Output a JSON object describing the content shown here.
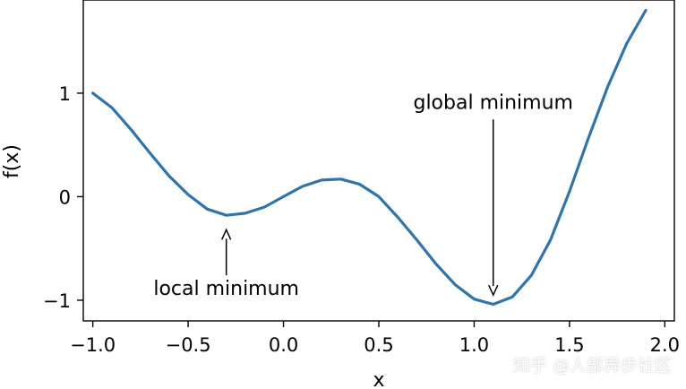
{
  "chart_data": {
    "type": "line",
    "xlabel": "x",
    "ylabel": "f(x)",
    "xlim": [
      -1.05,
      2.05
    ],
    "ylim": [
      -1.2,
      1.9
    ],
    "xticks": [
      -1.0,
      -0.5,
      0.0,
      0.5,
      1.0,
      1.5,
      2.0
    ],
    "xtick_labels": [
      "−1.0",
      "−0.5",
      "0.0",
      "0.5",
      "1.0",
      "1.5",
      "2.0"
    ],
    "yticks": [
      -1,
      0,
      1
    ],
    "ytick_labels": [
      "−1",
      "0",
      "1"
    ],
    "series": [
      {
        "color": "#3274a9",
        "x": [
          -1.0,
          -0.9,
          -0.8,
          -0.7,
          -0.6,
          -0.5,
          -0.4,
          -0.3,
          -0.2,
          -0.1,
          0.0,
          0.1,
          0.2,
          0.3,
          0.4,
          0.5,
          0.6,
          0.7,
          0.8,
          0.9,
          1.0,
          1.1,
          1.2,
          1.3,
          1.4,
          1.5,
          1.6,
          1.7,
          1.8,
          1.9
        ],
        "y": [
          1.0,
          0.86,
          0.65,
          0.42,
          0.2,
          0.02,
          -0.12,
          -0.18,
          -0.16,
          -0.1,
          0.0,
          0.1,
          0.16,
          0.17,
          0.12,
          0.0,
          -0.2,
          -0.42,
          -0.65,
          -0.85,
          -0.99,
          -1.04,
          -0.97,
          -0.76,
          -0.42,
          0.05,
          0.57,
          1.06,
          1.48,
          1.8
        ]
      }
    ],
    "annotations": [
      {
        "text": "local minimum",
        "point": [
          -0.3,
          -0.32
        ],
        "text_pos": [
          -0.3,
          -0.95
        ]
      },
      {
        "text": "global minimum",
        "point": [
          1.1,
          -0.95
        ],
        "text_pos": [
          1.1,
          0.85
        ]
      }
    ],
    "grid": false
  },
  "watermark": "知乎 @人部异步社区"
}
